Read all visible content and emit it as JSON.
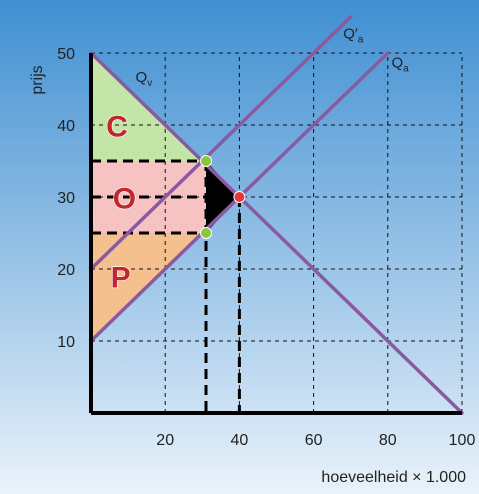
{
  "chart_data": {
    "type": "line",
    "title": "",
    "xlabel": "hoeveelheid × 1.000",
    "ylabel": "prijs",
    "xlim": [
      0,
      100
    ],
    "ylim": [
      0,
      50
    ],
    "x_ticks": [
      20,
      40,
      60,
      80,
      100
    ],
    "y_ticks": [
      10,
      20,
      30,
      40,
      50
    ],
    "grid": "dashed",
    "background": [
      "#3f8fd2",
      "#e9f2fa"
    ],
    "series": [
      {
        "name": "Qv",
        "label_main": "Q",
        "label_sub": "v",
        "label_prime": "",
        "points": [
          [
            0,
            50
          ],
          [
            100,
            0
          ]
        ],
        "color": "#8a5aa0",
        "label_at": [
          12,
          46
        ]
      },
      {
        "name": "Qa",
        "label_main": "Q",
        "label_sub": "a",
        "label_prime": "",
        "points": [
          [
            0,
            10
          ],
          [
            80,
            50
          ]
        ],
        "color": "#8a5aa0",
        "label_at": [
          81,
          48
        ]
      },
      {
        "name": "Q'a",
        "label_main": "Q",
        "label_sub": "a",
        "label_prime": "′",
        "points": [
          [
            0,
            20
          ],
          [
            70,
            55
          ]
        ],
        "color": "#8a5aa0",
        "label_at": [
          68,
          52
        ]
      }
    ],
    "areas": [
      {
        "letter": "C",
        "color": "#c3e6a8",
        "points": [
          [
            0,
            50
          ],
          [
            30,
            35
          ],
          [
            0,
            35
          ]
        ],
        "label_at": [
          7,
          39.5
        ]
      },
      {
        "letter": "O",
        "color": "#f7c2c2",
        "points": [
          [
            0,
            35
          ],
          [
            30,
            35
          ],
          [
            40,
            30
          ],
          [
            30,
            25
          ],
          [
            0,
            25
          ]
        ],
        "label_at": [
          9,
          29.5
        ]
      },
      {
        "letter": "P",
        "color": "#f4c08d",
        "points": [
          [
            0,
            25
          ],
          [
            30,
            25
          ],
          [
            0,
            10
          ]
        ],
        "label_at": [
          8,
          18.5
        ]
      }
    ],
    "deadweight_triangle": {
      "color": "#000000",
      "points": [
        [
          31,
          35
        ],
        [
          40,
          30
        ],
        [
          31,
          25
        ]
      ]
    },
    "guide_lines": [
      [
        [
          0,
          35
        ],
        [
          31,
          35
        ]
      ],
      [
        [
          0,
          25
        ],
        [
          31,
          25
        ]
      ],
      [
        [
          0,
          30
        ],
        [
          40,
          30
        ]
      ],
      [
        [
          31,
          35
        ],
        [
          31,
          0
        ]
      ],
      [
        [
          40,
          30
        ],
        [
          40,
          0
        ]
      ]
    ],
    "points": [
      {
        "x": 31,
        "y": 35,
        "color": "#8cc63f"
      },
      {
        "x": 31,
        "y": 25,
        "color": "#8cc63f"
      },
      {
        "x": 40,
        "y": 30,
        "color": "#e53935"
      }
    ]
  }
}
